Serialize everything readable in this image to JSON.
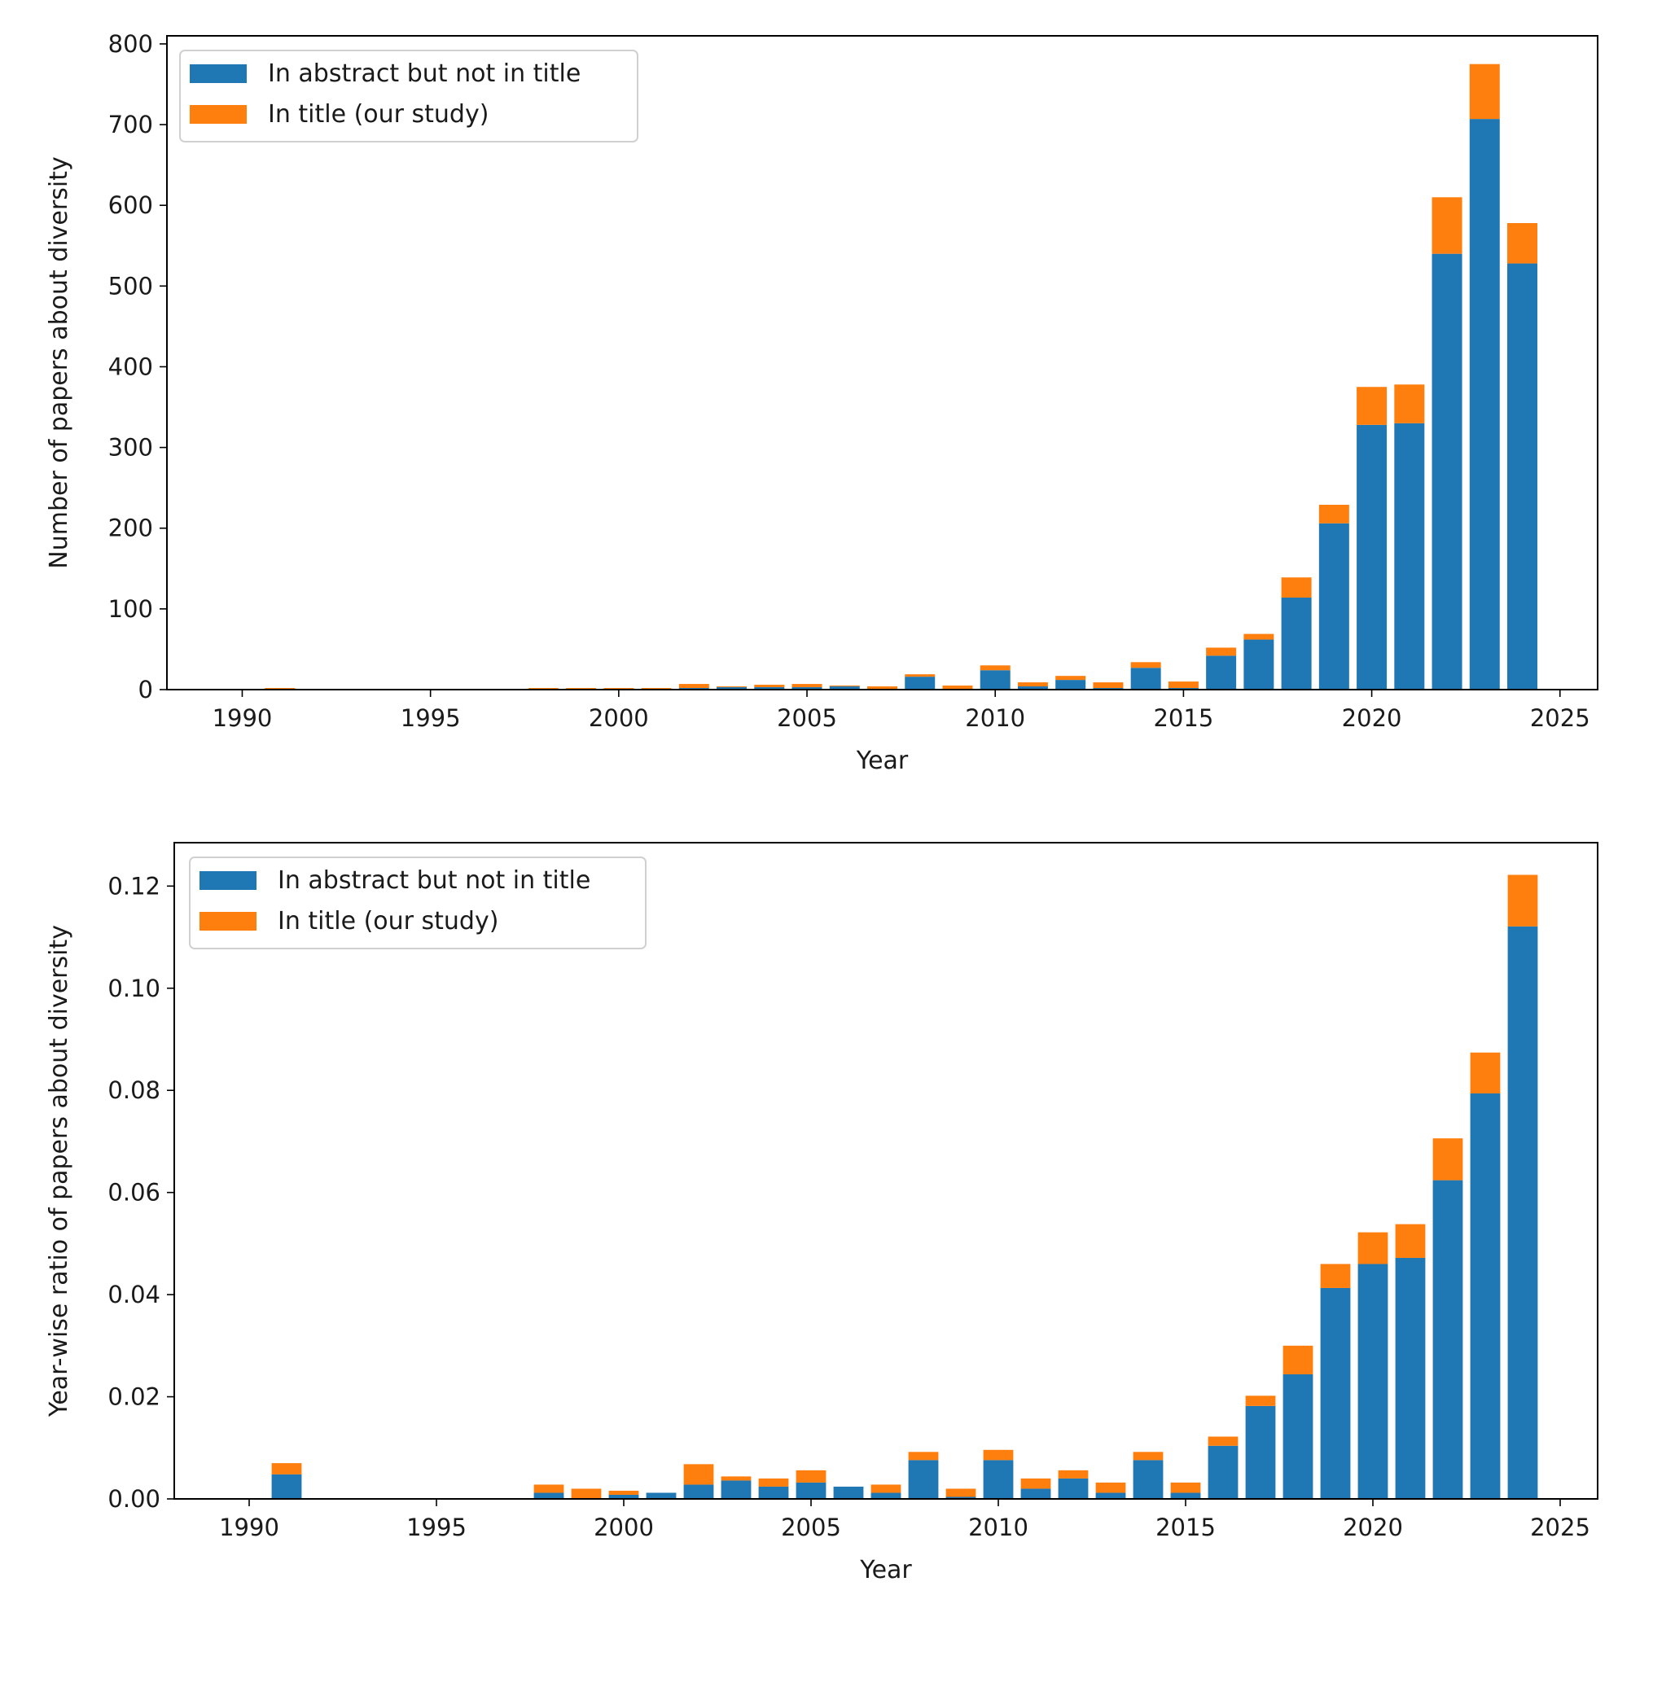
{
  "chart_data": [
    {
      "type": "bar",
      "stacked": true,
      "title": "",
      "xlabel": "Year",
      "ylabel": "Number of papers about diversity",
      "xlim": [
        1988,
        2026
      ],
      "ylim": [
        0,
        810
      ],
      "x_ticks": [
        1990,
        1995,
        2000,
        2005,
        2010,
        2015,
        2020,
        2025
      ],
      "x_tick_labels": [
        "1990",
        "1995",
        "2000",
        "2005",
        "2010",
        "2015",
        "2020",
        "2025"
      ],
      "y_ticks": [
        0,
        100,
        200,
        300,
        400,
        500,
        600,
        700,
        800
      ],
      "y_tick_labels": [
        "0",
        "100",
        "200",
        "300",
        "400",
        "500",
        "600",
        "700",
        "800"
      ],
      "legend_position": "top-left",
      "grid": false,
      "years": [
        1991,
        1998,
        1999,
        2000,
        2001,
        2002,
        2003,
        2004,
        2005,
        2006,
        2007,
        2008,
        2009,
        2010,
        2011,
        2012,
        2013,
        2014,
        2015,
        2016,
        2017,
        2018,
        2019,
        2020,
        2021,
        2022,
        2023,
        2024
      ],
      "series": [
        {
          "name": "In abstract but not in title",
          "color": "#1f77b4",
          "values": [
            1,
            1,
            0,
            1,
            1,
            2,
            3,
            3,
            3,
            4,
            1,
            16,
            1,
            24,
            4,
            12,
            2,
            27,
            2,
            42,
            62,
            114,
            206,
            328,
            330,
            540,
            707,
            528
          ]
        },
        {
          "name": "In title (our study)",
          "color": "#ff7f0e",
          "values": [
            1,
            1,
            2,
            1,
            1,
            5,
            1,
            3,
            4,
            1,
            3,
            3,
            4,
            6,
            5,
            5,
            7,
            7,
            8,
            10,
            7,
            25,
            23,
            47,
            48,
            70,
            68,
            50
          ]
        }
      ]
    },
    {
      "type": "bar",
      "stacked": true,
      "title": "",
      "xlabel": "Year",
      "ylabel": "Year-wise ratio of papers about diversity",
      "xlim": [
        1988,
        2026
      ],
      "ylim": [
        0,
        0.1285
      ],
      "x_ticks": [
        1990,
        1995,
        2000,
        2005,
        2010,
        2015,
        2020,
        2025
      ],
      "x_tick_labels": [
        "1990",
        "1995",
        "2000",
        "2005",
        "2010",
        "2015",
        "2020",
        "2025"
      ],
      "y_ticks": [
        0,
        0.02,
        0.04,
        0.06,
        0.08,
        0.1,
        0.12
      ],
      "y_tick_labels": [
        "0.00",
        "0.02",
        "0.04",
        "0.06",
        "0.08",
        "0.10",
        "0.12"
      ],
      "legend_position": "top-left",
      "grid": false,
      "years": [
        1991,
        1998,
        1999,
        2000,
        2001,
        2002,
        2003,
        2004,
        2005,
        2006,
        2007,
        2008,
        2009,
        2010,
        2011,
        2012,
        2013,
        2014,
        2015,
        2016,
        2017,
        2018,
        2019,
        2020,
        2021,
        2022,
        2023,
        2024
      ],
      "series": [
        {
          "name": "In abstract but not in title",
          "color": "#1f77b4",
          "values": [
            0.0048,
            0.0012,
            0.0,
            0.0008,
            0.0012,
            0.0028,
            0.0036,
            0.0024,
            0.0032,
            0.0024,
            0.0012,
            0.0076,
            0.0004,
            0.0076,
            0.002,
            0.004,
            0.0012,
            0.0076,
            0.0012,
            0.0104,
            0.0182,
            0.0244,
            0.0413,
            0.046,
            0.0472,
            0.0624,
            0.0794,
            0.1121
          ]
        },
        {
          "name": "In title (our study)",
          "color": "#ff7f0e",
          "values": [
            0.0022,
            0.0016,
            0.002,
            0.0008,
            0.0,
            0.004,
            0.0008,
            0.0016,
            0.0024,
            0.0,
            0.0016,
            0.0016,
            0.0016,
            0.002,
            0.002,
            0.0016,
            0.002,
            0.0016,
            0.002,
            0.0018,
            0.002,
            0.0056,
            0.0047,
            0.0062,
            0.0066,
            0.0082,
            0.008,
            0.0101
          ]
        }
      ]
    }
  ]
}
